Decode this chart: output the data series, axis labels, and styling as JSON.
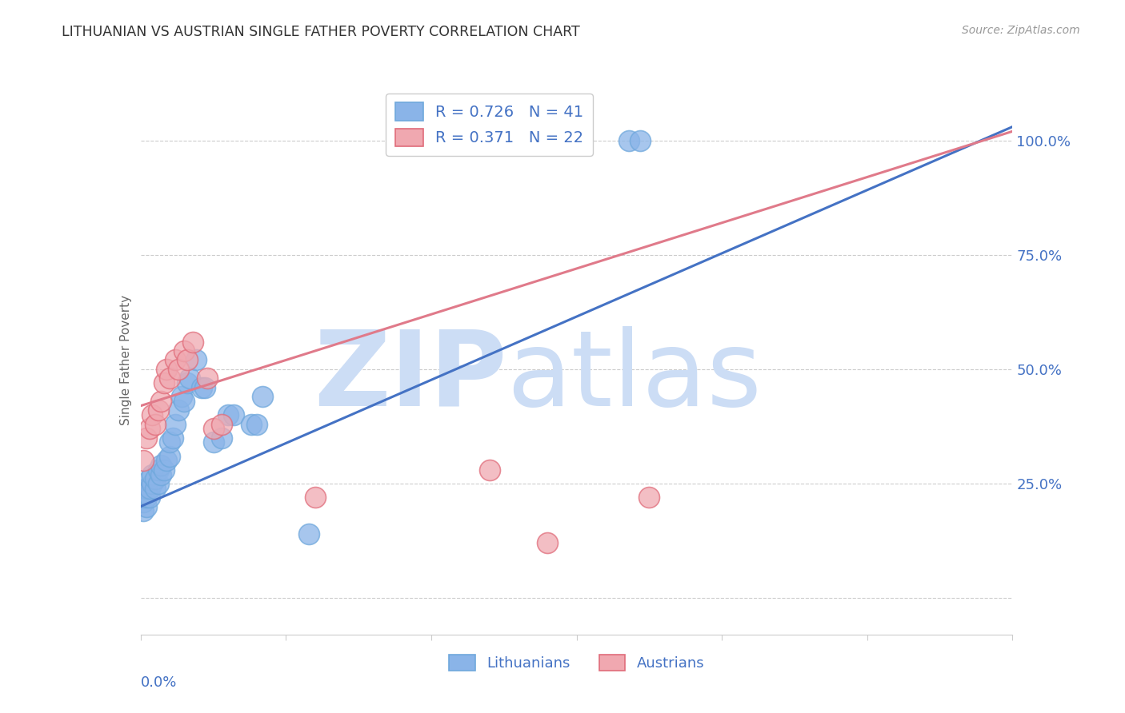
{
  "title": "LITHUANIAN VS AUSTRIAN SINGLE FATHER POVERTY CORRELATION CHART",
  "source": "Source: ZipAtlas.com",
  "ylabel": "Single Father Poverty",
  "blue_R": 0.726,
  "blue_N": 41,
  "pink_R": 0.371,
  "pink_N": 22,
  "blue_color": "#8ab4e8",
  "pink_color": "#f0a8b0",
  "blue_edge_color": "#6fa8dc",
  "pink_edge_color": "#e06c7a",
  "blue_line_color": "#4472c4",
  "pink_line_color": "#e07a8a",
  "legend_label_blue": "Lithuanians",
  "legend_label_pink": "Austrians",
  "title_color": "#333333",
  "axis_label_color": "#4472c4",
  "ylabel_color": "#666666",
  "grid_color": "#cccccc",
  "source_color": "#999999",
  "xmin": 0.0,
  "xmax": 0.3,
  "ymin": -0.08,
  "ymax": 1.12,
  "blue_line_x0": 0.0,
  "blue_line_y0": 0.2,
  "blue_line_x1": 0.3,
  "blue_line_y1": 1.03,
  "pink_line_x0": 0.0,
  "pink_line_y0": 0.42,
  "pink_line_x1": 0.3,
  "pink_line_y1": 1.02,
  "blue_x": [
    0.001,
    0.001,
    0.001,
    0.002,
    0.002,
    0.002,
    0.003,
    0.003,
    0.003,
    0.004,
    0.004,
    0.005,
    0.005,
    0.006,
    0.006,
    0.007,
    0.007,
    0.008,
    0.009,
    0.01,
    0.01,
    0.011,
    0.012,
    0.013,
    0.014,
    0.015,
    0.016,
    0.017,
    0.019,
    0.021,
    0.022,
    0.025,
    0.028,
    0.03,
    0.032,
    0.038,
    0.04,
    0.042,
    0.058,
    0.168,
    0.172
  ],
  "blue_y": [
    0.19,
    0.21,
    0.22,
    0.2,
    0.22,
    0.24,
    0.22,
    0.24,
    0.26,
    0.25,
    0.27,
    0.24,
    0.26,
    0.25,
    0.28,
    0.27,
    0.29,
    0.28,
    0.3,
    0.31,
    0.34,
    0.35,
    0.38,
    0.41,
    0.44,
    0.43,
    0.47,
    0.48,
    0.52,
    0.46,
    0.46,
    0.34,
    0.35,
    0.4,
    0.4,
    0.38,
    0.38,
    0.44,
    0.14,
    1.0,
    1.0
  ],
  "pink_x": [
    0.001,
    0.002,
    0.003,
    0.004,
    0.005,
    0.006,
    0.007,
    0.008,
    0.009,
    0.01,
    0.012,
    0.013,
    0.015,
    0.016,
    0.018,
    0.023,
    0.025,
    0.028,
    0.06,
    0.12,
    0.14,
    0.175
  ],
  "pink_y": [
    0.3,
    0.35,
    0.37,
    0.4,
    0.38,
    0.41,
    0.43,
    0.47,
    0.5,
    0.48,
    0.52,
    0.5,
    0.54,
    0.52,
    0.56,
    0.48,
    0.37,
    0.38,
    0.22,
    0.28,
    0.12,
    0.22
  ]
}
